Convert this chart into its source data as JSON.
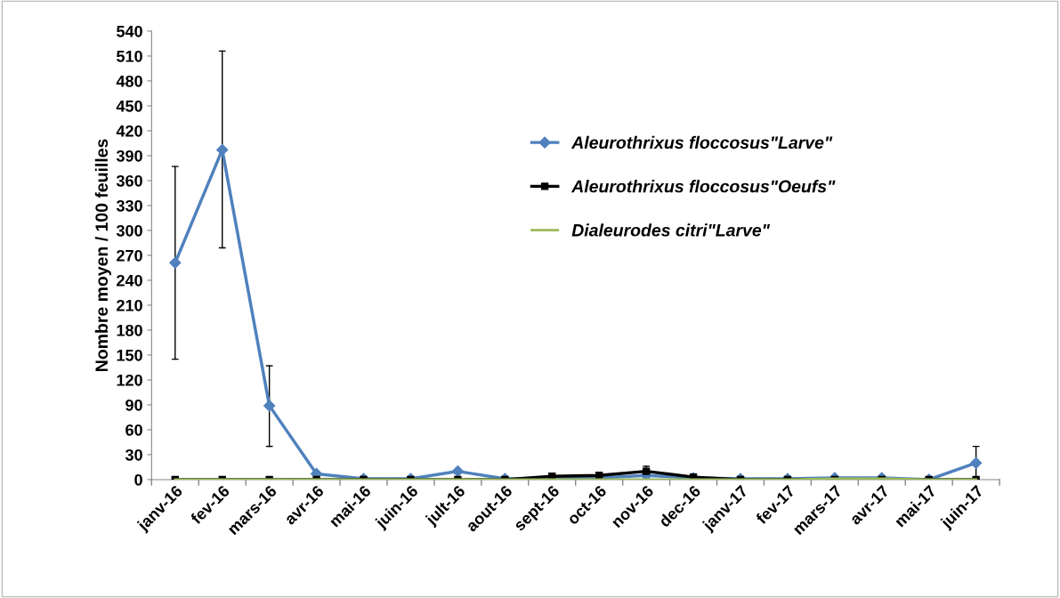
{
  "chart_data": {
    "type": "line",
    "ylabel": "Nombre moyen / 100 feuilles",
    "categories": [
      "janv-16",
      "fev-16",
      "mars-16",
      "avr-16",
      "mai-16",
      "juin-16",
      "jult-16",
      "aout-16",
      "sept-16",
      "oct-16",
      "nov-16",
      "dec-16",
      "janv-17",
      "fev-17",
      "mars-17",
      "avr-17",
      "mai-17",
      "juin-17"
    ],
    "series": [
      {
        "name": "Aleurothrixus floccosus\"Larve\"",
        "color": "#4f81bd",
        "marker": "diamond",
        "values": [
          261,
          397,
          89,
          7,
          1,
          1,
          10,
          1,
          1,
          2,
          5,
          2,
          1,
          1,
          2,
          2,
          0,
          20
        ],
        "errors": [
          [
            145,
            377
          ],
          [
            279,
            516
          ],
          [
            40,
            137
          ],
          null,
          null,
          null,
          null,
          null,
          null,
          null,
          null,
          null,
          null,
          null,
          null,
          null,
          null,
          [
            0,
            40
          ]
        ]
      },
      {
        "name": "Aleurothrixus floccosus\"Oeufs\"",
        "color": "#000000",
        "marker": "square",
        "values": [
          0,
          0,
          0,
          0,
          0,
          0,
          0,
          0,
          4,
          5,
          10,
          3,
          0,
          0,
          0,
          0,
          0,
          0
        ],
        "errors": [
          null,
          null,
          null,
          null,
          null,
          null,
          null,
          null,
          null,
          null,
          [
            4,
            16
          ],
          null,
          null,
          null,
          null,
          null,
          null,
          null
        ]
      },
      {
        "name": "Dialeurodes citri\"Larve\"",
        "color": "#9bbb59",
        "marker": "none",
        "values": [
          0,
          0,
          0,
          0,
          0,
          0,
          0,
          0,
          0,
          0,
          0,
          0,
          0,
          0,
          1,
          1,
          0,
          0
        ]
      }
    ],
    "ylim": [
      0,
      540
    ],
    "yticks": [
      0,
      30,
      60,
      90,
      120,
      150,
      180,
      210,
      240,
      270,
      300,
      330,
      360,
      390,
      420,
      450,
      480,
      510,
      540
    ],
    "grid": false,
    "legend": "top right"
  }
}
